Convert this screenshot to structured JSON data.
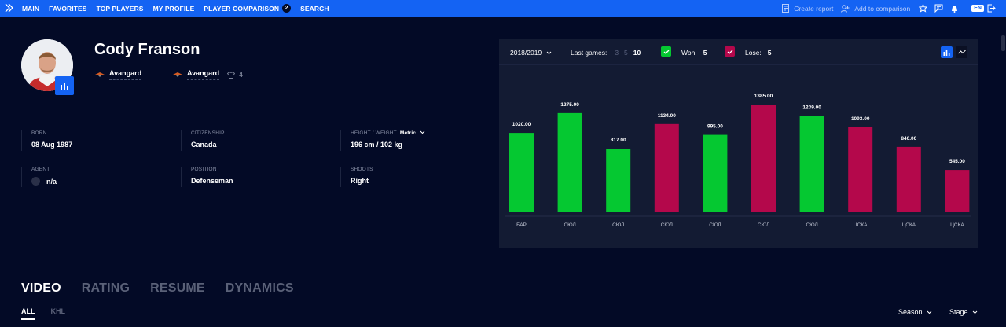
{
  "nav": {
    "items": [
      "MAIN",
      "FAVORITES",
      "TOP PLAYERS",
      "MY PROFILE",
      "PLAYER COMPARISON",
      "SEARCH"
    ],
    "comparison_count": "2",
    "create_report": "Create report",
    "add_to_comparison": "Add to comparison",
    "language": "EN"
  },
  "player": {
    "name": "Cody Franson",
    "team1": "Avangard",
    "team2": "Avangard",
    "jersey_number": "4"
  },
  "info": {
    "born_label": "BORN",
    "born": "08 Aug 1987",
    "citizenship_label": "CITIZENSHIP",
    "citizenship": "Canada",
    "hw_label": "HEIGHT / WEIGHT",
    "hw_unit": "Metric",
    "hw": "196 cm / 102 kg",
    "agent_label": "AGENT",
    "agent": "n/a",
    "position_label": "POSITION",
    "position": "Defenseman",
    "shoots_label": "SHOOTS",
    "shoots": "Right"
  },
  "chart_controls": {
    "season": "2018/2019",
    "last_games_label": "Last games:",
    "last_games_options": [
      "3",
      "5",
      "10"
    ],
    "won_label": "Won:",
    "won_count": "5",
    "lose_label": "Lose:",
    "lose_count": "5"
  },
  "colors": {
    "won": "#05c831",
    "lose": "#b4084b",
    "accent": "#1463f3",
    "background": "#030a26",
    "panel": "#131b33"
  },
  "chart_data": {
    "type": "bar",
    "categories": [
      "БАР",
      "СЮЛ",
      "СЮЛ",
      "СЮЛ",
      "СЮЛ",
      "СЮЛ",
      "СЮЛ",
      "ЦСКА",
      "ЦСКА",
      "ЦСКА"
    ],
    "values": [
      1020.0,
      1275.0,
      817.0,
      1134.0,
      995.0,
      1385.0,
      1239.0,
      1093.0,
      840.0,
      545.0
    ],
    "value_labels": [
      "1020.00",
      "1275.00",
      "817.00",
      "1134.00",
      "995.00",
      "1385.00",
      "1239.00",
      "1093.00",
      "840.00",
      "545.00"
    ],
    "result": [
      "won",
      "won",
      "won",
      "lose",
      "won",
      "lose",
      "won",
      "lose",
      "lose",
      "lose"
    ],
    "ylim": [
      0,
      1385
    ],
    "grid": false
  },
  "tabs": [
    "VIDEO",
    "RATING",
    "RESUME",
    "DYNAMICS"
  ],
  "subtabs": [
    "ALL",
    "KHL"
  ],
  "filters": {
    "season": "Season",
    "stage": "Stage"
  }
}
